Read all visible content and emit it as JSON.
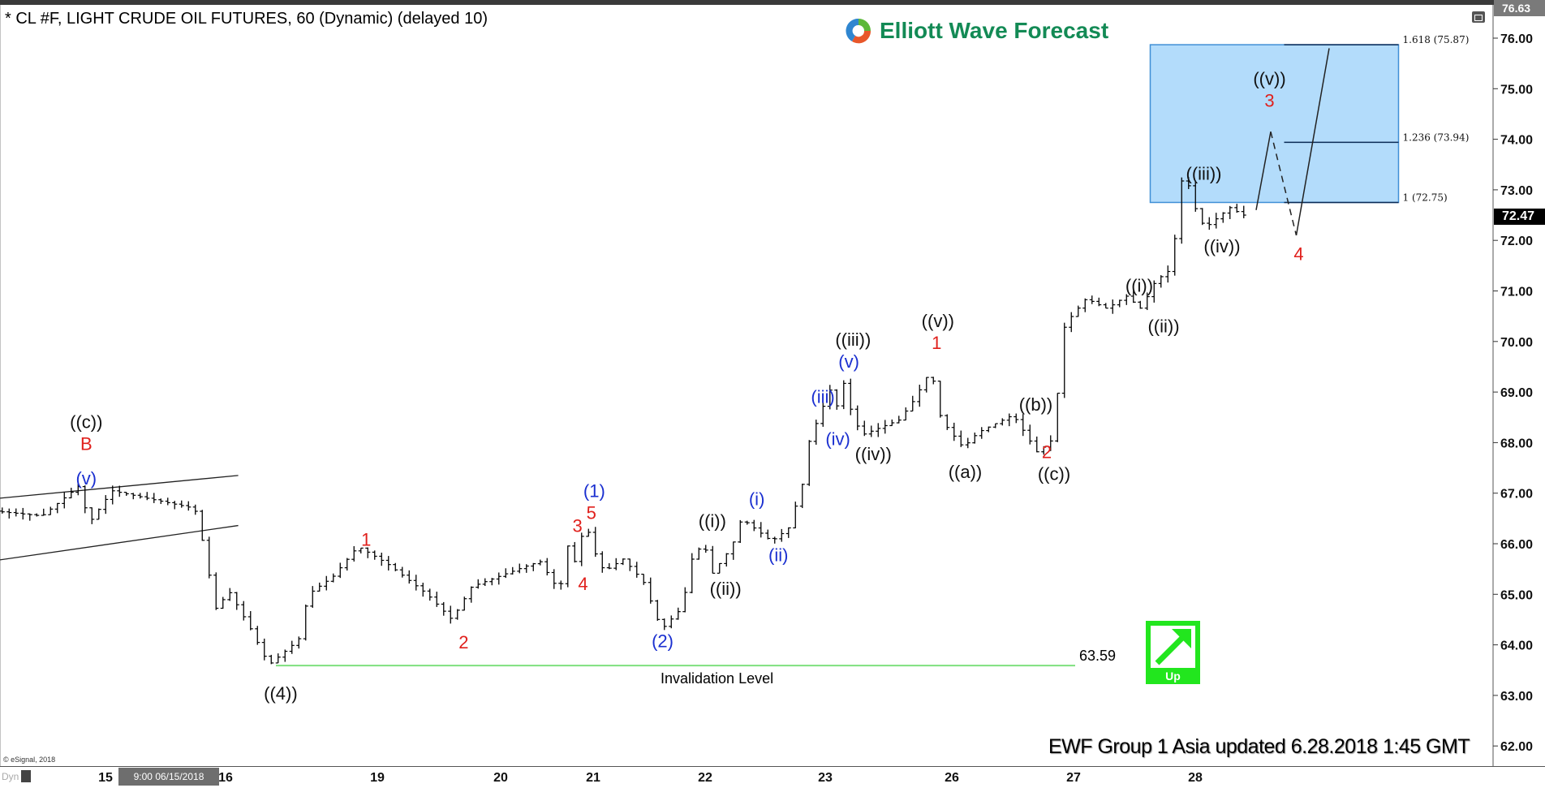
{
  "header": {
    "title": "* CL #F, LIGHT CRUDE OIL FUTURES, 60 (Dynamic) (delayed 10)",
    "logo_text": "Elliott Wave Forecast",
    "footer": "EWF Group 1 Asia updated 6.28.2018 1:45 GMT",
    "copyright": "© eSignal, 2018"
  },
  "xaxis": {
    "dyn_label": "Dyn",
    "cursor_label": "9:00 06/15/2018",
    "ticks": [
      "15",
      "16",
      "19",
      "20",
      "21",
      "22",
      "23",
      "26",
      "27",
      "28"
    ]
  },
  "price_markers": {
    "top_label": "76.63",
    "last_price": "72.47",
    "last_price_value": 72.47,
    "top_value": 76.63
  },
  "invalidation": {
    "label": "Invalidation Level",
    "price_text": "63.59",
    "price": 63.59,
    "color": "#7fe07f"
  },
  "up_badge": {
    "label": "Up",
    "color": "#22e61e"
  },
  "colors": {
    "red": "#e0201c",
    "blue": "#1a2fd0",
    "black": "#111111",
    "target_box": "#b3dcfb",
    "target_border": "#3f8fd6"
  },
  "chart_data": {
    "type": "bar",
    "title": "* CL #F, LIGHT CRUDE OIL FUTURES, 60 (Dynamic) (delayed 10)",
    "xlabel": "",
    "ylabel": "",
    "ylim": [
      61.6,
      76.7
    ],
    "yticks": [
      62,
      63,
      64,
      65,
      66,
      67,
      68,
      69,
      70,
      71,
      72,
      73,
      74,
      75,
      76
    ],
    "x_ticks": [
      "15",
      "16",
      "19",
      "20",
      "21",
      "22",
      "23",
      "26",
      "27",
      "28"
    ],
    "price_path": [
      [
        14.12,
        66.65
      ],
      [
        14.53,
        66.55
      ],
      [
        14.84,
        67.15
      ],
      [
        14.92,
        66.4
      ],
      [
        15.11,
        67.05
      ],
      [
        15.6,
        66.8
      ],
      [
        15.8,
        66.7
      ],
      [
        15.89,
        65.8
      ],
      [
        15.97,
        64.7
      ],
      [
        16.21,
        65.05
      ],
      [
        16.64,
        64.3
      ],
      [
        16.99,
        63.6
      ],
      [
        17.58,
        64.1
      ],
      [
        17.77,
        65.0
      ],
      [
        18.26,
        65.35
      ],
      [
        18.75,
        65.95
      ],
      [
        19.14,
        65.6
      ],
      [
        19.46,
        65.0
      ],
      [
        19.66,
        64.5
      ],
      [
        19.82,
        65.15
      ],
      [
        20.34,
        65.55
      ],
      [
        20.5,
        65.65
      ],
      [
        20.71,
        65.05
      ],
      [
        20.83,
        66.25
      ],
      [
        20.89,
        65.45
      ],
      [
        20.98,
        66.5
      ],
      [
        21.07,
        65.85
      ],
      [
        21.16,
        65.45
      ],
      [
        21.33,
        65.7
      ],
      [
        21.51,
        65.25
      ],
      [
        21.67,
        64.3
      ],
      [
        21.86,
        64.75
      ],
      [
        21.93,
        65.65
      ],
      [
        22.05,
        66.05
      ],
      [
        22.1,
        65.35
      ],
      [
        22.28,
        65.95
      ],
      [
        22.36,
        66.5
      ],
      [
        22.61,
        66.05
      ],
      [
        22.75,
        66.3
      ],
      [
        22.87,
        67.2
      ],
      [
        22.92,
        68.0
      ],
      [
        23.05,
        68.6
      ],
      [
        23.28,
        69.05
      ],
      [
        23.4,
        68.55
      ],
      [
        23.56,
        69.3
      ],
      [
        23.8,
        68.55
      ],
      [
        24.03,
        68.15
      ],
      [
        24.92,
        68.45
      ],
      [
        25.27,
        68.85
      ],
      [
        25.67,
        69.45
      ],
      [
        25.91,
        68.45
      ],
      [
        26.15,
        67.9
      ],
      [
        26.27,
        68.2
      ],
      [
        26.56,
        68.55
      ],
      [
        26.76,
        67.8
      ],
      [
        26.9,
        68.1
      ],
      [
        26.96,
        70.2
      ],
      [
        27.04,
        70.5
      ],
      [
        27.16,
        70.85
      ],
      [
        27.33,
        70.65
      ],
      [
        27.49,
        70.9
      ],
      [
        27.61,
        70.65
      ],
      [
        27.73,
        71.2
      ],
      [
        27.84,
        71.4
      ],
      [
        27.88,
        71.8
      ],
      [
        27.93,
        73.2
      ],
      [
        28.02,
        73.05
      ],
      [
        28.07,
        72.5
      ],
      [
        28.14,
        72.25
      ],
      [
        28.34,
        72.65
      ],
      [
        28.45,
        72.5
      ]
    ],
    "projection": {
      "solid_up": [
        [
          28.5,
          72.6
        ],
        [
          28.62,
          74.15
        ]
      ],
      "dashed_down": [
        [
          28.62,
          74.15
        ],
        [
          28.83,
          72.1
        ]
      ],
      "solid_final": [
        [
          28.83,
          72.1
        ],
        [
          29.1,
          75.8
        ]
      ]
    },
    "channel": {
      "upper": [
        [
          14.12,
          66.9
        ],
        [
          16.25,
          67.35
        ]
      ],
      "lower": [
        [
          14.12,
          65.68
        ],
        [
          16.25,
          66.36
        ]
      ]
    },
    "target_zone": {
      "from": 27.63,
      "to": 29.67,
      "high": 75.87,
      "low": 72.75,
      "fib_start": 28.73,
      "levels": [
        {
          "label": "1.618 (75.87)",
          "price": 75.87
        },
        {
          "label": "1.236 (73.94)",
          "price": 73.94
        },
        {
          "label": "1 (72.75)",
          "price": 72.75
        }
      ]
    },
    "wave_labels": [
      {
        "text": "B",
        "color": "red",
        "x": 14.84,
        "y": 67.98
      },
      {
        "text": "((c))",
        "color": "black",
        "x": 14.84,
        "y": 67.71
      },
      {
        "text": "(v)",
        "color": "blue",
        "x": 14.84,
        "y": 67.3
      },
      {
        "text": "((4))",
        "color": "black",
        "x": 17.09,
        "y": 63.05
      },
      {
        "text": "1",
        "color": "red",
        "x": 18.78,
        "y": 66.09
      },
      {
        "text": "2",
        "color": "red",
        "x": 19.7,
        "y": 64.06
      },
      {
        "text": "3",
        "color": "red",
        "x": 20.83,
        "y": 66.36
      },
      {
        "text": "5",
        "color": "red",
        "x": 20.98,
        "y": 66.62
      },
      {
        "text": "(1)",
        "color": "blue",
        "x": 21.01,
        "y": 66.93
      },
      {
        "text": "4",
        "color": "red",
        "x": 20.89,
        "y": 65.21
      },
      {
        "text": "(2)",
        "color": "blue",
        "x": 21.62,
        "y": 64.08
      },
      {
        "text": "((i))",
        "color": "black",
        "x": 22.06,
        "y": 66.46
      },
      {
        "text": "((ii))",
        "color": "black",
        "x": 22.17,
        "y": 65.12
      },
      {
        "text": "(i)",
        "color": "blue",
        "x": 22.43,
        "y": 66.89
      },
      {
        "text": "(ii)",
        "color": "blue",
        "x": 22.61,
        "y": 65.78
      },
      {
        "text": "(iii)",
        "color": "blue",
        "x": 22.98,
        "y": 68.91
      },
      {
        "text": "(iv)",
        "color": "blue",
        "x": 23.3,
        "y": 68.08
      },
      {
        "text": "((iv))",
        "color": "black",
        "x": 24.14,
        "y": 67.78
      },
      {
        "text": "(v)",
        "color": "blue",
        "x": 23.56,
        "y": 69.61
      },
      {
        "text": "((iii))",
        "color": "black",
        "x": 23.66,
        "y": 69.96
      },
      {
        "text": "1",
        "color": "red",
        "x": 25.64,
        "y": 69.98
      },
      {
        "text": "((v))",
        "color": "black",
        "x": 25.67,
        "y": 69.61
      },
      {
        "text": "((a))",
        "color": "black",
        "x": 26.11,
        "y": 67.43
      },
      {
        "text": "((b))",
        "color": "black",
        "x": 26.69,
        "y": 68.76
      },
      {
        "text": "((c))",
        "color": "black",
        "x": 26.84,
        "y": 67.39
      },
      {
        "text": "2",
        "color": "red",
        "x": 26.78,
        "y": 67.04
      },
      {
        "text": "((i))",
        "color": "black",
        "x": 27.54,
        "y": 71.11
      },
      {
        "text": "((ii))",
        "color": "black",
        "x": 27.74,
        "y": 70.31
      },
      {
        "text": "((iii))",
        "color": "black",
        "x": 28.07,
        "y": 73.33
      },
      {
        "text": "((iv))",
        "color": "black",
        "x": 28.22,
        "y": 71.89
      },
      {
        "text": "3",
        "color": "red",
        "x": 28.61,
        "y": 74.77
      },
      {
        "text": "((v))",
        "color": "black",
        "x": 28.61,
        "y": 74.42
      },
      {
        "text": "4",
        "color": "red",
        "x": 28.85,
        "y": 71.74
      }
    ]
  }
}
